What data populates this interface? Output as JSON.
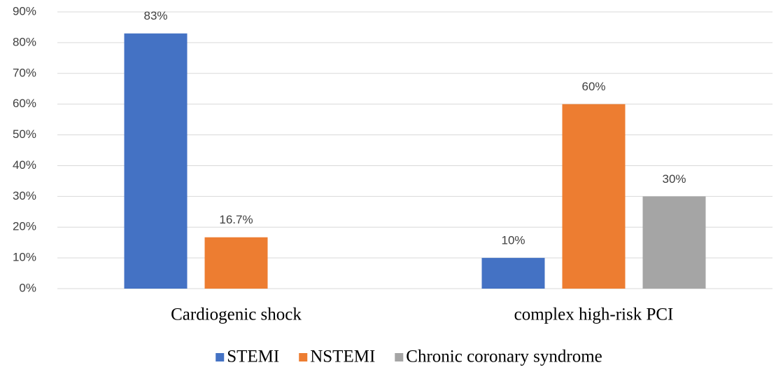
{
  "chart_data": {
    "type": "bar",
    "categories": [
      "Cardiogenic shock",
      "complex high-risk PCI"
    ],
    "series": [
      {
        "name": "STEMI",
        "color": "#4472c4",
        "values": [
          83,
          10
        ],
        "value_labels": [
          "83%",
          "10%"
        ]
      },
      {
        "name": "NSTEMI",
        "color": "#ed7d31",
        "values": [
          16.7,
          60
        ],
        "value_labels": [
          "16.7%",
          "60%"
        ]
      },
      {
        "name": "Chronic coronary syndrome",
        "color": "#a5a5a5",
        "values": [
          null,
          30
        ],
        "value_labels": [
          null,
          "30%"
        ]
      }
    ],
    "ylim": [
      0,
      90
    ],
    "yticks": [
      {
        "value": 0,
        "label": "0%"
      },
      {
        "value": 10,
        "label": "10%"
      },
      {
        "value": 20,
        "label": "20%"
      },
      {
        "value": 30,
        "label": "30%"
      },
      {
        "value": 40,
        "label": "40%"
      },
      {
        "value": 50,
        "label": "50%"
      },
      {
        "value": 60,
        "label": "60%"
      },
      {
        "value": 70,
        "label": "70%"
      },
      {
        "value": 80,
        "label": "80%"
      },
      {
        "value": 90,
        "label": "90%"
      }
    ],
    "grid": true,
    "legend": "bottom"
  }
}
